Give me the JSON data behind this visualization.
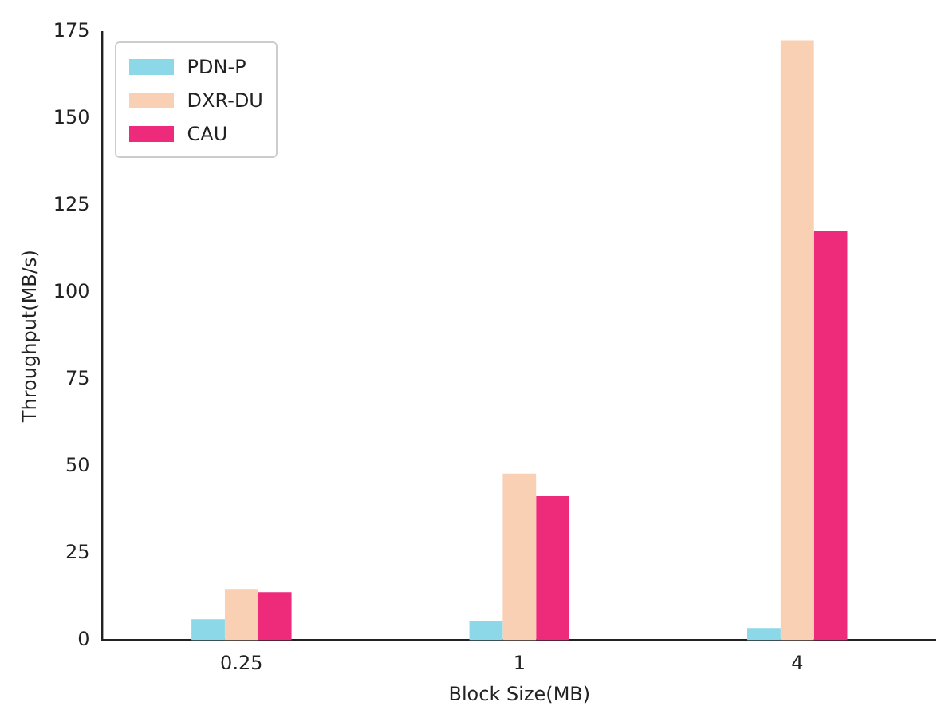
{
  "chart_data": {
    "type": "bar",
    "xlabel": "Block Size(MB)",
    "ylabel": "Throughput(MB/s)",
    "categories": [
      "0.25",
      "1",
      "4"
    ],
    "series": [
      {
        "name": "PDN-P",
        "color": "#8dd8e8",
        "values": [
          6.0,
          5.5,
          3.5
        ]
      },
      {
        "name": "DXR-DU",
        "color": "#f9d0b3",
        "values": [
          14.7,
          47.9,
          172.6
        ]
      },
      {
        "name": "CAU",
        "color": "#ee2a7b",
        "values": [
          13.8,
          41.4,
          117.8
        ]
      }
    ],
    "ylim": [
      0,
      175
    ],
    "yticks": [
      0,
      25,
      50,
      75,
      100,
      125,
      150,
      175
    ],
    "grid": false,
    "legend": "top left"
  }
}
